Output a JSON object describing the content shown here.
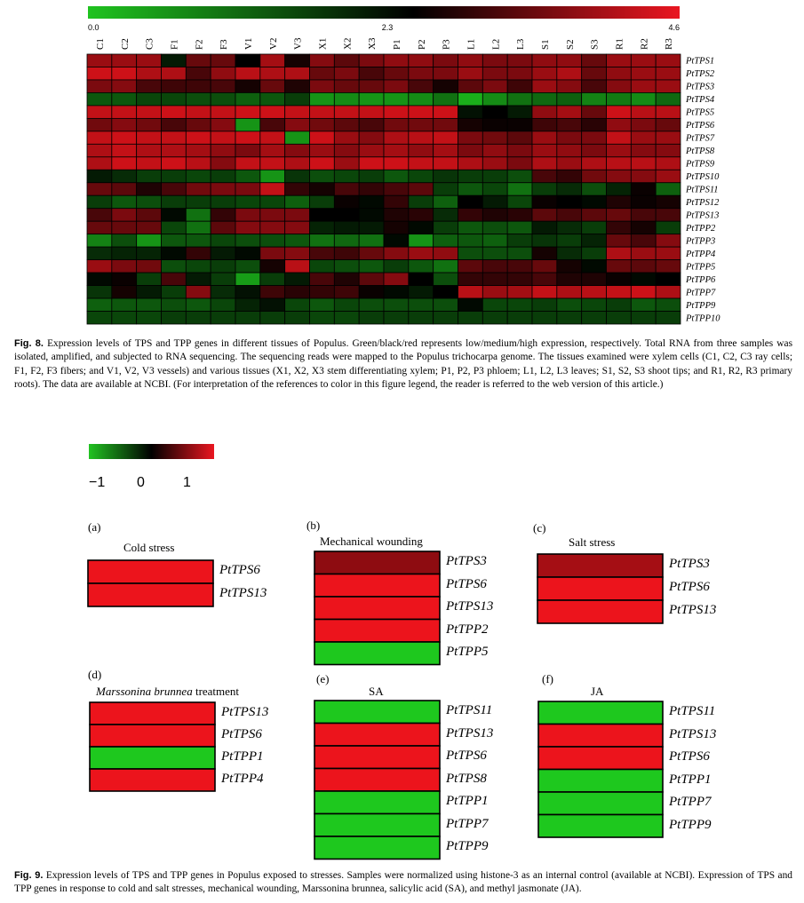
{
  "fig8": {
    "caption_label": "Fig. 8.",
    "caption_text": "Expression levels of TPS and TPP genes in different tissues of Populus. Green/black/red represents low/medium/high expression, respectively. Total RNA from three samples was isolated, amplified, and subjected to RNA sequencing. The sequencing reads were mapped to the Populus trichocarpa genome. The tissues examined were xylem cells (C1, C2, C3 ray cells; F1, F2, F3 fibers; and V1, V2, V3 vessels) and various tissues (X1, X2, X3 stem differentiating xylem; P1, P2, P3 phloem; L1, L2, L3 leaves; S1, S2, S3 shoot tips; and R1, R2, R3 primary roots). The data are available at NCBI. (For interpretation of the references to color in this figure legend, the reader is referred to the web version of this article.)",
    "legend": {
      "min": "0.0",
      "mid": "2.3",
      "max": "4.6",
      "low_color": "#1fbf1f",
      "mid_color": "#000000",
      "high_color": "#e8141c"
    }
  },
  "fig9": {
    "caption_label": "Fig. 9.",
    "caption_text": "Expression levels of TPS and TPP genes in Populus exposed to stresses. Samples were normalized using histone-3 as an internal control (available at NCBI). Expression of TPS and TPP genes in response to cold and salt stresses, mechanical wounding, Marssonina brunnea, salicylic acid (SA), and methyl jasmonate (JA).",
    "legend": {
      "min": "−1",
      "mid": "0",
      "max": "1"
    }
  },
  "chart_data": [
    {
      "type": "heatmap",
      "title": "",
      "scale": {
        "min": 0.0,
        "mid": 2.3,
        "max": 4.6
      },
      "columns": [
        "C1",
        "C2",
        "C3",
        "F1",
        "F2",
        "F3",
        "V1",
        "V2",
        "V3",
        "X1",
        "X2",
        "X3",
        "P1",
        "P2",
        "P3",
        "L1",
        "L2",
        "L3",
        "S1",
        "S2",
        "S3",
        "R1",
        "R2",
        "R3"
      ],
      "rows": [
        "PtTPS1",
        "PtTPS2",
        "PtTPS3",
        "PtTPS4",
        "PtTPS5",
        "PtTPS6",
        "PtTPS7",
        "PtTPS8",
        "PtTPS9",
        "PtTPS10",
        "PtTPS11",
        "PtTPS12",
        "PtTPS13",
        "PtTPP2",
        "PtTPP3",
        "PtTPP4",
        "PtTPP5",
        "PtTPP6",
        "PtTPP7",
        "PtTPP9",
        "PtTPP10"
      ],
      "values": [
        [
          3.8,
          3.8,
          3.8,
          2.0,
          3.3,
          3.3,
          2.3,
          3.9,
          2.5,
          3.6,
          3.2,
          3.5,
          3.7,
          3.7,
          3.5,
          3.7,
          3.5,
          3.5,
          3.7,
          3.7,
          3.3,
          3.8,
          3.8,
          3.8
        ],
        [
          4.3,
          4.3,
          4.0,
          4.0,
          3.0,
          3.7,
          4.1,
          4.0,
          4.0,
          3.3,
          3.5,
          3.0,
          3.3,
          3.5,
          3.5,
          3.8,
          3.5,
          3.5,
          3.8,
          4.0,
          3.3,
          3.7,
          3.8,
          3.8
        ],
        [
          3.5,
          3.6,
          3.0,
          2.9,
          2.9,
          3.0,
          2.5,
          3.3,
          2.6,
          3.5,
          3.3,
          3.3,
          3.5,
          3.0,
          2.5,
          3.2,
          3.5,
          2.9,
          3.8,
          3.6,
          3.0,
          3.6,
          3.8,
          3.8
        ],
        [
          1.3,
          1.3,
          1.5,
          1.5,
          1.4,
          1.4,
          1.2,
          1.3,
          1.6,
          0.6,
          0.7,
          0.6,
          0.6,
          0.7,
          1.0,
          0.3,
          0.7,
          1.0,
          1.1,
          1.2,
          0.8,
          0.9,
          0.7,
          1.1
        ],
        [
          4.2,
          4.2,
          4.2,
          4.3,
          4.2,
          4.2,
          4.3,
          4.3,
          4.2,
          4.2,
          4.2,
          4.2,
          4.3,
          4.3,
          4.3,
          2.1,
          2.3,
          2.0,
          3.7,
          3.9,
          3.3,
          4.3,
          4.1,
          4.1
        ],
        [
          3.4,
          3.6,
          3.4,
          3.0,
          3.3,
          3.6,
          0.6,
          3.0,
          3.6,
          3.4,
          3.2,
          3.0,
          3.4,
          3.4,
          3.4,
          2.5,
          2.4,
          2.4,
          2.9,
          3.0,
          2.7,
          3.7,
          3.5,
          3.3
        ],
        [
          4.2,
          4.3,
          4.2,
          4.2,
          4.3,
          4.2,
          4.3,
          4.2,
          0.6,
          4.3,
          3.8,
          3.6,
          4.0,
          4.1,
          4.2,
          3.5,
          3.4,
          3.2,
          3.8,
          3.5,
          3.5,
          4.2,
          3.8,
          3.8
        ],
        [
          4.0,
          4.2,
          4.0,
          4.0,
          3.9,
          3.7,
          3.5,
          3.9,
          3.6,
          3.8,
          3.6,
          3.8,
          3.9,
          3.7,
          3.9,
          3.5,
          3.7,
          3.5,
          3.8,
          3.7,
          3.5,
          3.8,
          3.6,
          3.6
        ],
        [
          4.0,
          4.3,
          4.2,
          4.3,
          4.1,
          3.6,
          4.2,
          4.2,
          4.0,
          4.3,
          3.8,
          4.3,
          4.3,
          4.2,
          4.2,
          4.0,
          3.8,
          3.5,
          4.0,
          3.8,
          4.0,
          4.1,
          4.1,
          4.0
        ],
        [
          2.0,
          1.8,
          1.6,
          1.6,
          1.5,
          1.6,
          1.3,
          0.6,
          1.7,
          1.4,
          1.5,
          1.6,
          1.3,
          1.5,
          1.7,
          1.6,
          1.6,
          1.4,
          3.0,
          2.8,
          3.4,
          3.6,
          3.6,
          3.8
        ],
        [
          3.3,
          3.2,
          2.6,
          3.0,
          3.4,
          3.5,
          3.5,
          4.2,
          2.8,
          2.5,
          3.0,
          2.8,
          3.0,
          3.2,
          1.6,
          1.3,
          1.5,
          1.0,
          1.6,
          1.8,
          1.4,
          1.9,
          2.4,
          1.2
        ],
        [
          1.6,
          1.3,
          1.4,
          1.6,
          1.6,
          1.6,
          1.5,
          1.5,
          1.2,
          1.6,
          2.4,
          2.2,
          2.8,
          1.6,
          1.2,
          2.3,
          2.0,
          1.5,
          2.4,
          2.3,
          2.2,
          2.6,
          2.4,
          2.5
        ],
        [
          3.0,
          3.5,
          3.2,
          2.2,
          1.0,
          2.8,
          3.5,
          3.5,
          3.5,
          2.3,
          2.3,
          2.2,
          2.6,
          2.7,
          1.8,
          2.8,
          2.6,
          2.7,
          3.2,
          3.0,
          3.2,
          3.3,
          3.0,
          3.0
        ],
        [
          3.3,
          3.3,
          3.3,
          1.5,
          1.0,
          3.2,
          3.6,
          3.6,
          3.6,
          1.9,
          2.0,
          2.0,
          2.5,
          2.2,
          1.6,
          1.3,
          1.4,
          1.3,
          2.0,
          1.8,
          1.6,
          2.8,
          2.5,
          1.6
        ],
        [
          0.8,
          1.4,
          0.6,
          1.3,
          1.3,
          1.5,
          1.4,
          1.4,
          1.3,
          1.0,
          1.1,
          1.0,
          2.2,
          0.6,
          1.2,
          1.3,
          1.2,
          1.6,
          1.7,
          1.6,
          1.9,
          3.3,
          3.0,
          3.6
        ],
        [
          1.8,
          1.9,
          1.9,
          2.2,
          2.8,
          2.0,
          2.2,
          3.5,
          3.6,
          3.0,
          2.9,
          3.3,
          3.6,
          3.8,
          3.7,
          1.4,
          1.4,
          1.4,
          2.5,
          1.8,
          1.6,
          4.0,
          3.8,
          3.8
        ],
        [
          3.8,
          3.5,
          3.4,
          1.4,
          1.5,
          1.6,
          1.4,
          2.5,
          4.1,
          1.5,
          1.4,
          1.3,
          1.6,
          1.3,
          1.0,
          3.2,
          3.0,
          3.0,
          3.3,
          2.5,
          2.2,
          3.3,
          3.2,
          3.3
        ],
        [
          2.2,
          2.4,
          1.6,
          3.0,
          2.0,
          1.6,
          0.5,
          1.6,
          2.0,
          3.0,
          2.6,
          3.2,
          3.6,
          2.3,
          1.4,
          2.8,
          2.8,
          2.8,
          3.0,
          2.6,
          2.6,
          2.4,
          2.2,
          2.3
        ],
        [
          1.7,
          2.5,
          2.0,
          1.6,
          3.6,
          1.8,
          2.1,
          2.9,
          2.7,
          2.8,
          2.9,
          2.4,
          2.2,
          2.0,
          2.3,
          4.1,
          3.8,
          3.9,
          4.2,
          4.0,
          4.1,
          4.2,
          4.3,
          4.0
        ],
        [
          1.2,
          1.3,
          1.3,
          1.4,
          1.3,
          1.5,
          1.9,
          2.1,
          1.5,
          1.3,
          1.5,
          1.4,
          1.4,
          1.4,
          1.4,
          2.2,
          1.5,
          1.5,
          1.6,
          1.4,
          1.5,
          1.6,
          1.3,
          1.4
        ],
        [
          1.5,
          1.5,
          1.5,
          1.6,
          1.6,
          1.6,
          1.6,
          1.6,
          1.6,
          1.5,
          1.5,
          1.6,
          1.6,
          1.6,
          1.6,
          1.6,
          1.6,
          1.6,
          1.6,
          1.6,
          1.6,
          1.6,
          1.6,
          1.6
        ]
      ]
    },
    {
      "type": "heatmap",
      "panel": "(a)",
      "title": "Cold stress",
      "scale": {
        "min": -1,
        "mid": 0,
        "max": 1
      },
      "rows": [
        "PtTPS6",
        "PtTPS13"
      ],
      "values": [
        1,
        1
      ]
    },
    {
      "type": "heatmap",
      "panel": "(b)",
      "title": "Mechanical wounding",
      "scale": {
        "min": -1,
        "mid": 0,
        "max": 1
      },
      "rows": [
        "PtTPS3",
        "PtTPS6",
        "PtTPS13",
        "PtTPP2",
        "PtTPP5"
      ],
      "values": [
        0.6,
        1,
        1,
        1,
        -1
      ]
    },
    {
      "type": "heatmap",
      "panel": "(c)",
      "title": "Salt stress",
      "scale": {
        "min": -1,
        "mid": 0,
        "max": 1
      },
      "rows": [
        "PtTPS3",
        "PtTPS6",
        "PtTPS13"
      ],
      "values": [
        0.7,
        1,
        1
      ]
    },
    {
      "type": "heatmap",
      "panel": "(d)",
      "title": "Marssonina brunnea",
      "title_suffix": "treatment",
      "scale": {
        "min": -1,
        "mid": 0,
        "max": 1
      },
      "rows": [
        "PtTPS13",
        "PtTPS6",
        "PtTPP1",
        "PtTPP4"
      ],
      "values": [
        1,
        1,
        -1,
        1
      ]
    },
    {
      "type": "heatmap",
      "panel": "(e)",
      "title": "SA",
      "scale": {
        "min": -1,
        "mid": 0,
        "max": 1
      },
      "rows": [
        "PtTPS11",
        "PtTPS13",
        "PtTPS6",
        "PtTPS8",
        "PtTPP1",
        "PtTPP7",
        "PtTPP9"
      ],
      "values": [
        -1,
        1,
        1,
        1,
        -1,
        -1,
        -1
      ]
    },
    {
      "type": "heatmap",
      "panel": "(f)",
      "title": "JA",
      "scale": {
        "min": -1,
        "mid": 0,
        "max": 1
      },
      "rows": [
        "PtTPS11",
        "PtTPS13",
        "PtTPS6",
        "PtTPP1",
        "PtTPP7",
        "PtTPP9"
      ],
      "values": [
        -1,
        1,
        1,
        -1,
        -1,
        -1
      ]
    }
  ]
}
